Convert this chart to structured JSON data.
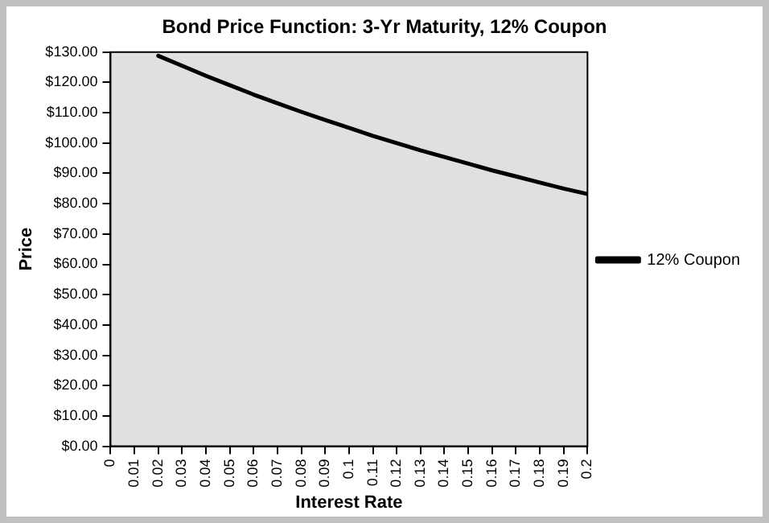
{
  "chart_data": {
    "type": "line",
    "title": "Bond Price Function: 3-Yr Maturity, 12% Coupon",
    "xlabel": "Interest Rate",
    "ylabel": "Price",
    "x": [
      0.02,
      0.03,
      0.04,
      0.05,
      0.06,
      0.07,
      0.08,
      0.09,
      0.1,
      0.11,
      0.12,
      0.13,
      0.14,
      0.15,
      0.16,
      0.17,
      0.18,
      0.19,
      0.2
    ],
    "series": [
      {
        "name": "12% Coupon",
        "color": "#000000",
        "values": [
          128.8,
          125.5,
          122.2,
          119.1,
          116.0,
          113.1,
          110.3,
          107.6,
          105.0,
          102.4,
          100.0,
          97.6,
          95.4,
          93.2,
          91.0,
          89.0,
          87.0,
          85.0,
          83.2
        ]
      }
    ],
    "xlim": [
      0,
      0.2
    ],
    "xticks": [
      0,
      0.01,
      0.02,
      0.03,
      0.04,
      0.05,
      0.06,
      0.07,
      0.08,
      0.09,
      0.1,
      0.11,
      0.12,
      0.13,
      0.14,
      0.15,
      0.16,
      0.17,
      0.18,
      0.19,
      0.2
    ],
    "ylim": [
      0,
      130
    ],
    "yticks": [
      {
        "value": 0,
        "label": "$0.00"
      },
      {
        "value": 10,
        "label": "$10.00"
      },
      {
        "value": 20,
        "label": "$20.00"
      },
      {
        "value": 30,
        "label": "$30.00"
      },
      {
        "value": 40,
        "label": "$40.00"
      },
      {
        "value": 50,
        "label": "$50.00"
      },
      {
        "value": 60,
        "label": "$60.00"
      },
      {
        "value": 70,
        "label": "$70.00"
      },
      {
        "value": 80,
        "label": "$80.00"
      },
      {
        "value": 90,
        "label": "$90.00"
      },
      {
        "value": 100,
        "label": "$100.00"
      },
      {
        "value": 110,
        "label": "$110.00"
      },
      {
        "value": 120,
        "label": "$120.00"
      },
      {
        "value": 130,
        "label": "$130.00"
      }
    ],
    "grid": false,
    "legend": "right",
    "marker": "none",
    "line_style": "solid"
  }
}
